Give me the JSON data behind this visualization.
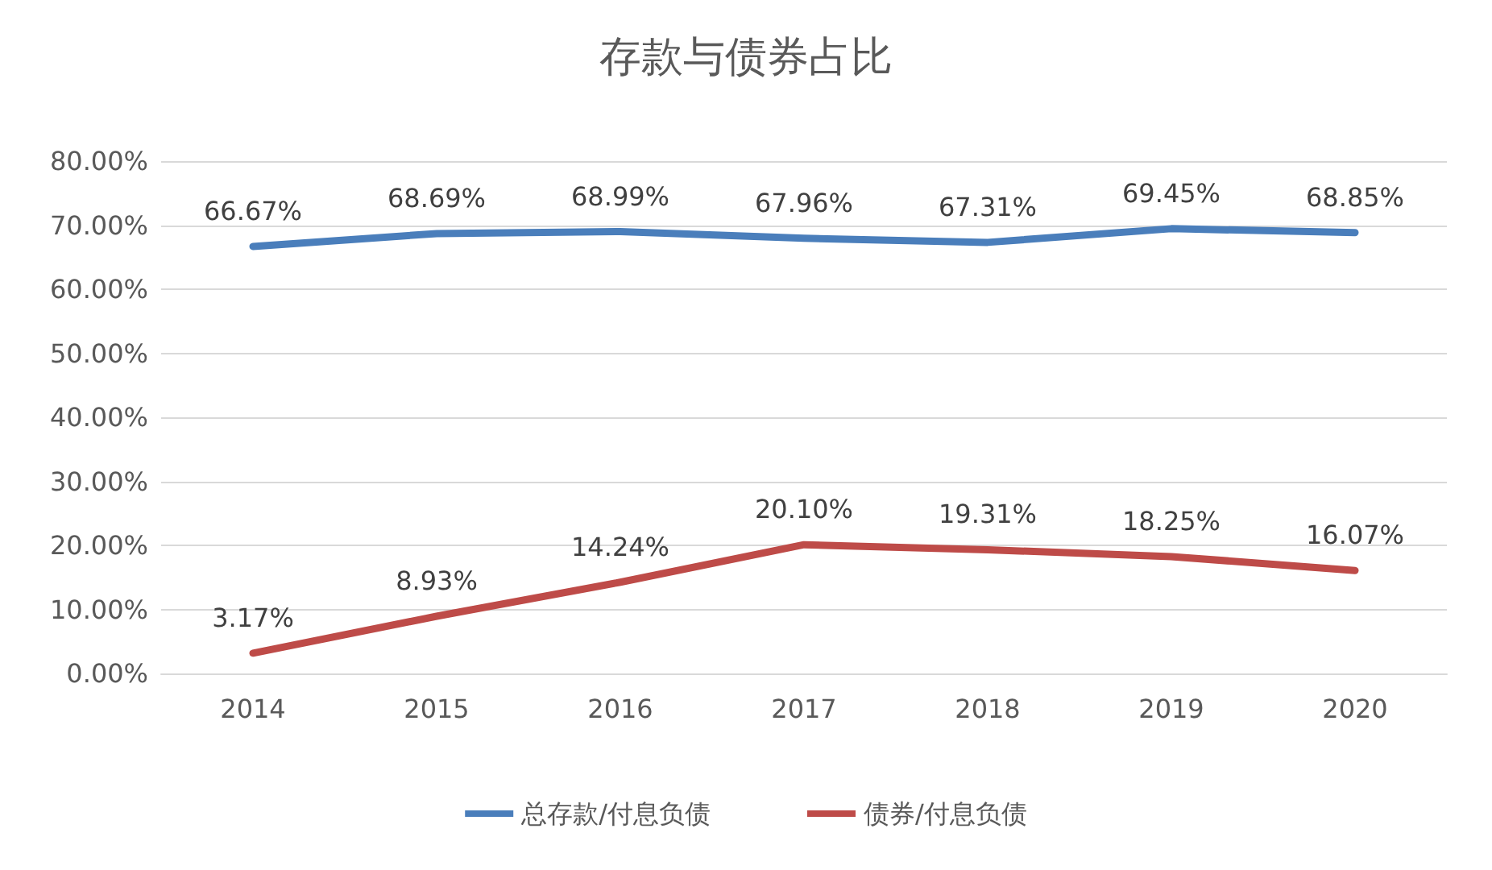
{
  "chart_data": {
    "type": "line",
    "title": "存款与债券占比",
    "categories": [
      "2014",
      "2015",
      "2016",
      "2017",
      "2018",
      "2019",
      "2020"
    ],
    "series": [
      {
        "name": "总存款/付息负债",
        "color": "#4a7ebb",
        "values": [
          66.67,
          68.69,
          68.99,
          67.96,
          67.31,
          69.45,
          68.85
        ],
        "value_labels": [
          "66.67%",
          "68.69%",
          "68.99%",
          "67.96%",
          "67.31%",
          "69.45%",
          "68.85%"
        ]
      },
      {
        "name": "债券/付息负债",
        "color": "#be4b48",
        "values": [
          3.17,
          8.93,
          14.24,
          20.1,
          19.31,
          18.25,
          16.07
        ],
        "value_labels": [
          "3.17%",
          "8.93%",
          "14.24%",
          "20.10%",
          "19.31%",
          "18.25%",
          "16.07%"
        ]
      }
    ],
    "ylim": [
      0,
      80
    ],
    "yticks": [
      {
        "value": 0,
        "label": "0.00%"
      },
      {
        "value": 10,
        "label": "10.00%"
      },
      {
        "value": 20,
        "label": "20.00%"
      },
      {
        "value": 30,
        "label": "30.00%"
      },
      {
        "value": 40,
        "label": "40.00%"
      },
      {
        "value": 50,
        "label": "50.00%"
      },
      {
        "value": 60,
        "label": "60.00%"
      },
      {
        "value": 70,
        "label": "70.00%"
      },
      {
        "value": 80,
        "label": "80.00%"
      }
    ],
    "grid": "y",
    "legend": "bottom",
    "marker": "none",
    "line_style": "solid"
  }
}
